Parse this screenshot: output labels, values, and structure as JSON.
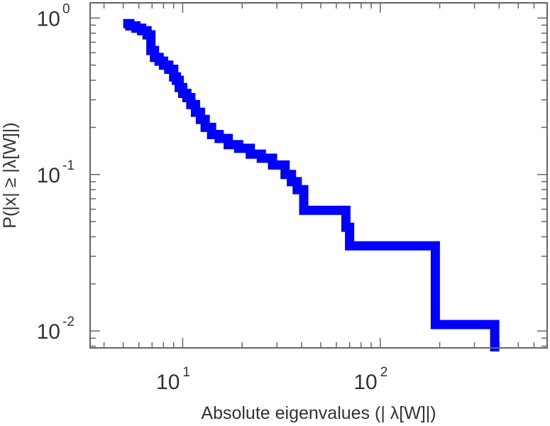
{
  "chart_data": {
    "type": "line",
    "title": "",
    "xlabel": "Absolute eigenvalues (|     λ[W]|)",
    "ylabel": "P(|x|  ≥ |λ[W]|)",
    "xscale": "log",
    "yscale": "log",
    "xlim": [
      3.4,
      700
    ],
    "ylim": [
      0.0078,
      1.25
    ],
    "grid": false,
    "legend": "none",
    "color": "#0000ff",
    "x_ticks": [
      {
        "base": "10",
        "exp": "1",
        "value": 10
      },
      {
        "base": "10",
        "exp": "2",
        "value": 100
      }
    ],
    "y_ticks": [
      {
        "base": "10",
        "exp": "0",
        "value": 1
      },
      {
        "base": "10",
        "exp": "-1",
        "value": 0.1
      },
      {
        "base": "10",
        "exp": "-2",
        "value": 0.01
      }
    ],
    "series": [
      {
        "x": [
          5.0,
          5.4,
          5.8,
          6.2,
          6.6,
          6.9,
          7.2,
          7.6,
          8.0,
          8.5,
          9.0,
          9.3,
          9.6,
          10.0,
          10.5,
          11.0,
          11.6,
          12.3,
          13.0,
          14.0,
          15.3,
          17.0,
          19.2,
          22.0,
          25.0,
          28.5,
          33.0,
          35.5,
          38.0,
          41.0,
          67.0,
          70.0,
          190.0,
          380.0
        ],
        "y": [
          0.92,
          0.89,
          0.86,
          0.83,
          0.78,
          0.62,
          0.56,
          0.53,
          0.5,
          0.47,
          0.42,
          0.4,
          0.36,
          0.33,
          0.31,
          0.28,
          0.25,
          0.225,
          0.2,
          0.18,
          0.17,
          0.155,
          0.147,
          0.135,
          0.127,
          0.115,
          0.1,
          0.09,
          0.08,
          0.059,
          0.046,
          0.035,
          0.011,
          0.011
        ]
      }
    ]
  }
}
